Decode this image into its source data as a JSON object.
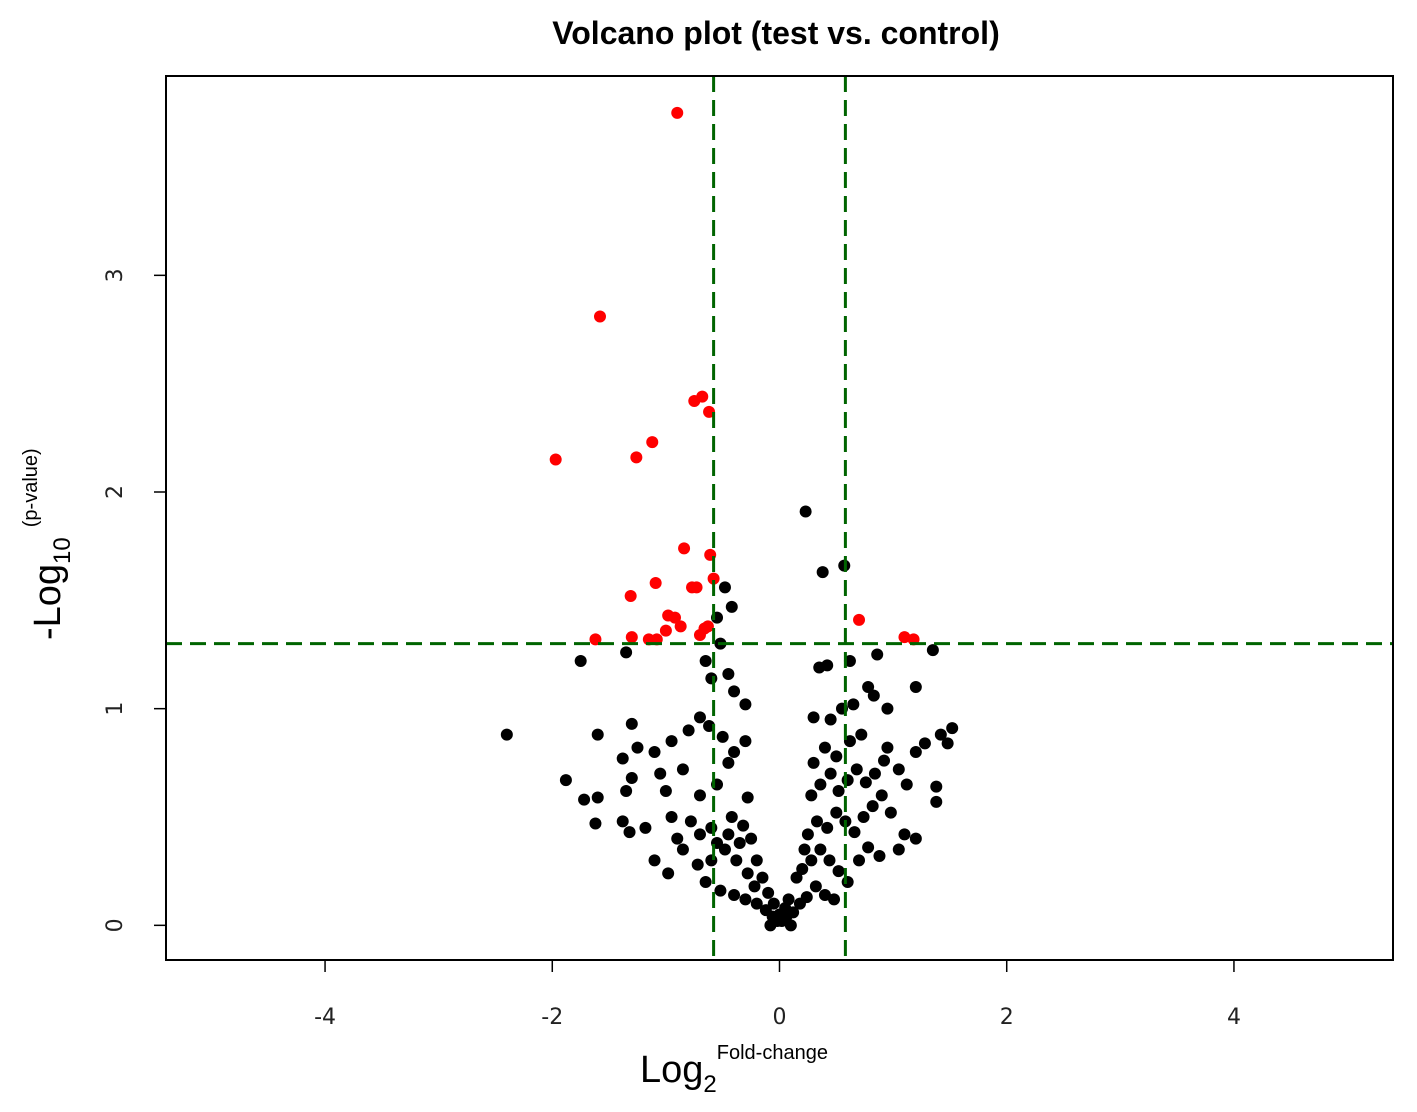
{
  "chart_data": {
    "type": "scatter",
    "title": "Volcano plot (test vs. control)",
    "xlabel": {
      "main": "Log",
      "sub": "2",
      "sup": "Fold-change"
    },
    "ylabel": {
      "main": "-Log",
      "sub": "10",
      "sup": "(p-value)"
    },
    "xlim": [
      -5.4,
      5.4
    ],
    "ylim": [
      -0.16,
      3.92
    ],
    "x_ticks": [
      -4,
      -2,
      0,
      2,
      4
    ],
    "x_tick_labels": [
      "-4",
      "-2",
      "0",
      "2",
      "4"
    ],
    "y_ticks": [
      0,
      1,
      2,
      3
    ],
    "y_tick_labels": [
      "0",
      "1",
      "2",
      "3"
    ],
    "thresholds": {
      "x": [
        -0.58,
        0.58
      ],
      "y": [
        1.3
      ],
      "color": "#006400",
      "style": "dashed"
    },
    "grid": false,
    "legend": "none",
    "series": [
      {
        "color": "#ff0000",
        "points": [
          [
            -0.9,
            3.75
          ],
          [
            -1.58,
            2.81
          ],
          [
            -0.68,
            2.44
          ],
          [
            -0.75,
            2.42
          ],
          [
            -0.62,
            2.37
          ],
          [
            -1.12,
            2.23
          ],
          [
            -1.26,
            2.16
          ],
          [
            -1.97,
            2.15
          ],
          [
            -0.84,
            1.74
          ],
          [
            -0.61,
            1.71
          ],
          [
            -0.77,
            1.56
          ],
          [
            -0.73,
            1.56
          ],
          [
            -1.09,
            1.58
          ],
          [
            -0.58,
            1.6
          ],
          [
            -1.31,
            1.52
          ],
          [
            -0.98,
            1.43
          ],
          [
            -0.92,
            1.42
          ],
          [
            -0.87,
            1.38
          ],
          [
            -1.0,
            1.36
          ],
          [
            -0.66,
            1.37
          ],
          [
            -0.63,
            1.38
          ],
          [
            -0.7,
            1.34
          ],
          [
            -1.3,
            1.33
          ],
          [
            -1.15,
            1.32
          ],
          [
            -1.08,
            1.32
          ],
          [
            -1.62,
            1.32
          ],
          [
            0.7,
            1.41
          ],
          [
            1.1,
            1.33
          ],
          [
            1.18,
            1.32
          ]
        ]
      },
      {
        "color": "#000000",
        "points": [
          [
            0.23,
            1.91
          ],
          [
            0.38,
            1.63
          ],
          [
            0.57,
            1.66
          ],
          [
            -0.48,
            1.56
          ],
          [
            -0.42,
            1.47
          ],
          [
            -0.55,
            1.42
          ],
          [
            -0.52,
            1.3
          ],
          [
            -1.75,
            1.22
          ],
          [
            -1.35,
            1.26
          ],
          [
            -0.65,
            1.22
          ],
          [
            -0.6,
            1.14
          ],
          [
            -0.45,
            1.16
          ],
          [
            -0.4,
            1.08
          ],
          [
            -0.3,
            1.02
          ],
          [
            0.42,
            1.2
          ],
          [
            0.35,
            1.19
          ],
          [
            0.62,
            1.22
          ],
          [
            0.78,
            1.1
          ],
          [
            0.83,
            1.06
          ],
          [
            0.86,
            1.25
          ],
          [
            1.35,
            1.27
          ],
          [
            1.2,
            1.1
          ],
          [
            -2.4,
            0.88
          ],
          [
            -1.6,
            0.88
          ],
          [
            -1.3,
            0.93
          ],
          [
            -1.38,
            0.77
          ],
          [
            -1.25,
            0.82
          ],
          [
            -1.1,
            0.8
          ],
          [
            -0.95,
            0.85
          ],
          [
            -0.8,
            0.9
          ],
          [
            -0.7,
            0.96
          ],
          [
            -0.62,
            0.92
          ],
          [
            -0.5,
            0.87
          ],
          [
            -0.4,
            0.8
          ],
          [
            -0.3,
            0.85
          ],
          [
            -0.45,
            0.75
          ],
          [
            -0.85,
            0.72
          ],
          [
            -1.05,
            0.7
          ],
          [
            -1.3,
            0.68
          ],
          [
            -1.6,
            0.59
          ],
          [
            -1.72,
            0.58
          ],
          [
            -1.88,
            0.67
          ],
          [
            -1.35,
            0.62
          ],
          [
            -1.0,
            0.62
          ],
          [
            -0.7,
            0.6
          ],
          [
            -0.55,
            0.65
          ],
          [
            -0.28,
            0.59
          ],
          [
            -1.62,
            0.47
          ],
          [
            -1.38,
            0.48
          ],
          [
            -1.32,
            0.43
          ],
          [
            -1.18,
            0.45
          ],
          [
            -0.95,
            0.5
          ],
          [
            -0.78,
            0.48
          ],
          [
            -0.6,
            0.45
          ],
          [
            -0.42,
            0.5
          ],
          [
            -0.32,
            0.46
          ],
          [
            -1.1,
            0.3
          ],
          [
            -0.98,
            0.24
          ],
          [
            -0.85,
            0.35
          ],
          [
            -0.72,
            0.28
          ],
          [
            -0.6,
            0.3
          ],
          [
            -0.48,
            0.35
          ],
          [
            -0.38,
            0.3
          ],
          [
            -0.28,
            0.24
          ],
          [
            -0.22,
            0.18
          ],
          [
            -0.65,
            0.2
          ],
          [
            -0.52,
            0.16
          ],
          [
            -0.4,
            0.14
          ],
          [
            -0.3,
            0.12
          ],
          [
            -0.2,
            0.1
          ],
          [
            -0.12,
            0.07
          ],
          [
            -0.06,
            0.04
          ],
          [
            -0.02,
            0.02
          ],
          [
            0.02,
            0.02
          ],
          [
            0.06,
            0.04
          ],
          [
            0.12,
            0.06
          ],
          [
            0.18,
            0.1
          ],
          [
            0.24,
            0.13
          ],
          [
            0.32,
            0.18
          ],
          [
            0.4,
            0.14
          ],
          [
            0.48,
            0.12
          ],
          [
            0.2,
            0.26
          ],
          [
            0.28,
            0.3
          ],
          [
            0.36,
            0.35
          ],
          [
            0.44,
            0.3
          ],
          [
            0.52,
            0.25
          ],
          [
            0.6,
            0.2
          ],
          [
            0.7,
            0.3
          ],
          [
            0.78,
            0.36
          ],
          [
            0.88,
            0.32
          ],
          [
            0.25,
            0.42
          ],
          [
            0.33,
            0.48
          ],
          [
            0.42,
            0.45
          ],
          [
            0.5,
            0.52
          ],
          [
            0.58,
            0.48
          ],
          [
            0.66,
            0.43
          ],
          [
            0.74,
            0.5
          ],
          [
            0.82,
            0.55
          ],
          [
            0.9,
            0.6
          ],
          [
            0.98,
            0.52
          ],
          [
            0.28,
            0.6
          ],
          [
            0.36,
            0.65
          ],
          [
            0.45,
            0.7
          ],
          [
            0.52,
            0.62
          ],
          [
            0.6,
            0.67
          ],
          [
            0.68,
            0.72
          ],
          [
            0.76,
            0.66
          ],
          [
            0.84,
            0.7
          ],
          [
            0.92,
            0.76
          ],
          [
            0.3,
            0.75
          ],
          [
            0.4,
            0.82
          ],
          [
            0.5,
            0.78
          ],
          [
            0.62,
            0.85
          ],
          [
            0.72,
            0.88
          ],
          [
            0.95,
            0.82
          ],
          [
            1.05,
            0.72
          ],
          [
            1.12,
            0.65
          ],
          [
            1.2,
            0.8
          ],
          [
            1.28,
            0.84
          ],
          [
            1.38,
            0.64
          ],
          [
            1.42,
            0.88
          ],
          [
            1.48,
            0.84
          ],
          [
            1.52,
            0.91
          ],
          [
            1.38,
            0.57
          ],
          [
            1.1,
            0.42
          ],
          [
            1.2,
            0.4
          ],
          [
            1.05,
            0.35
          ],
          [
            0.45,
            0.95
          ],
          [
            0.3,
            0.96
          ],
          [
            0.55,
            1.0
          ],
          [
            0.65,
            1.02
          ],
          [
            0.95,
            1.0
          ],
          [
            0.22,
            0.35
          ],
          [
            0.15,
            0.22
          ],
          [
            -0.15,
            0.22
          ],
          [
            -0.2,
            0.3
          ],
          [
            -0.1,
            0.15
          ],
          [
            0.08,
            0.12
          ],
          [
            -0.25,
            0.4
          ],
          [
            -0.35,
            0.38
          ],
          [
            -0.45,
            0.42
          ],
          [
            -0.55,
            0.38
          ],
          [
            -0.7,
            0.42
          ],
          [
            -0.9,
            0.4
          ],
          [
            0.1,
            0.0
          ],
          [
            -0.08,
            0.0
          ],
          [
            0.0,
            0.05
          ],
          [
            0.05,
            0.08
          ],
          [
            -0.05,
            0.1
          ]
        ]
      }
    ]
  }
}
